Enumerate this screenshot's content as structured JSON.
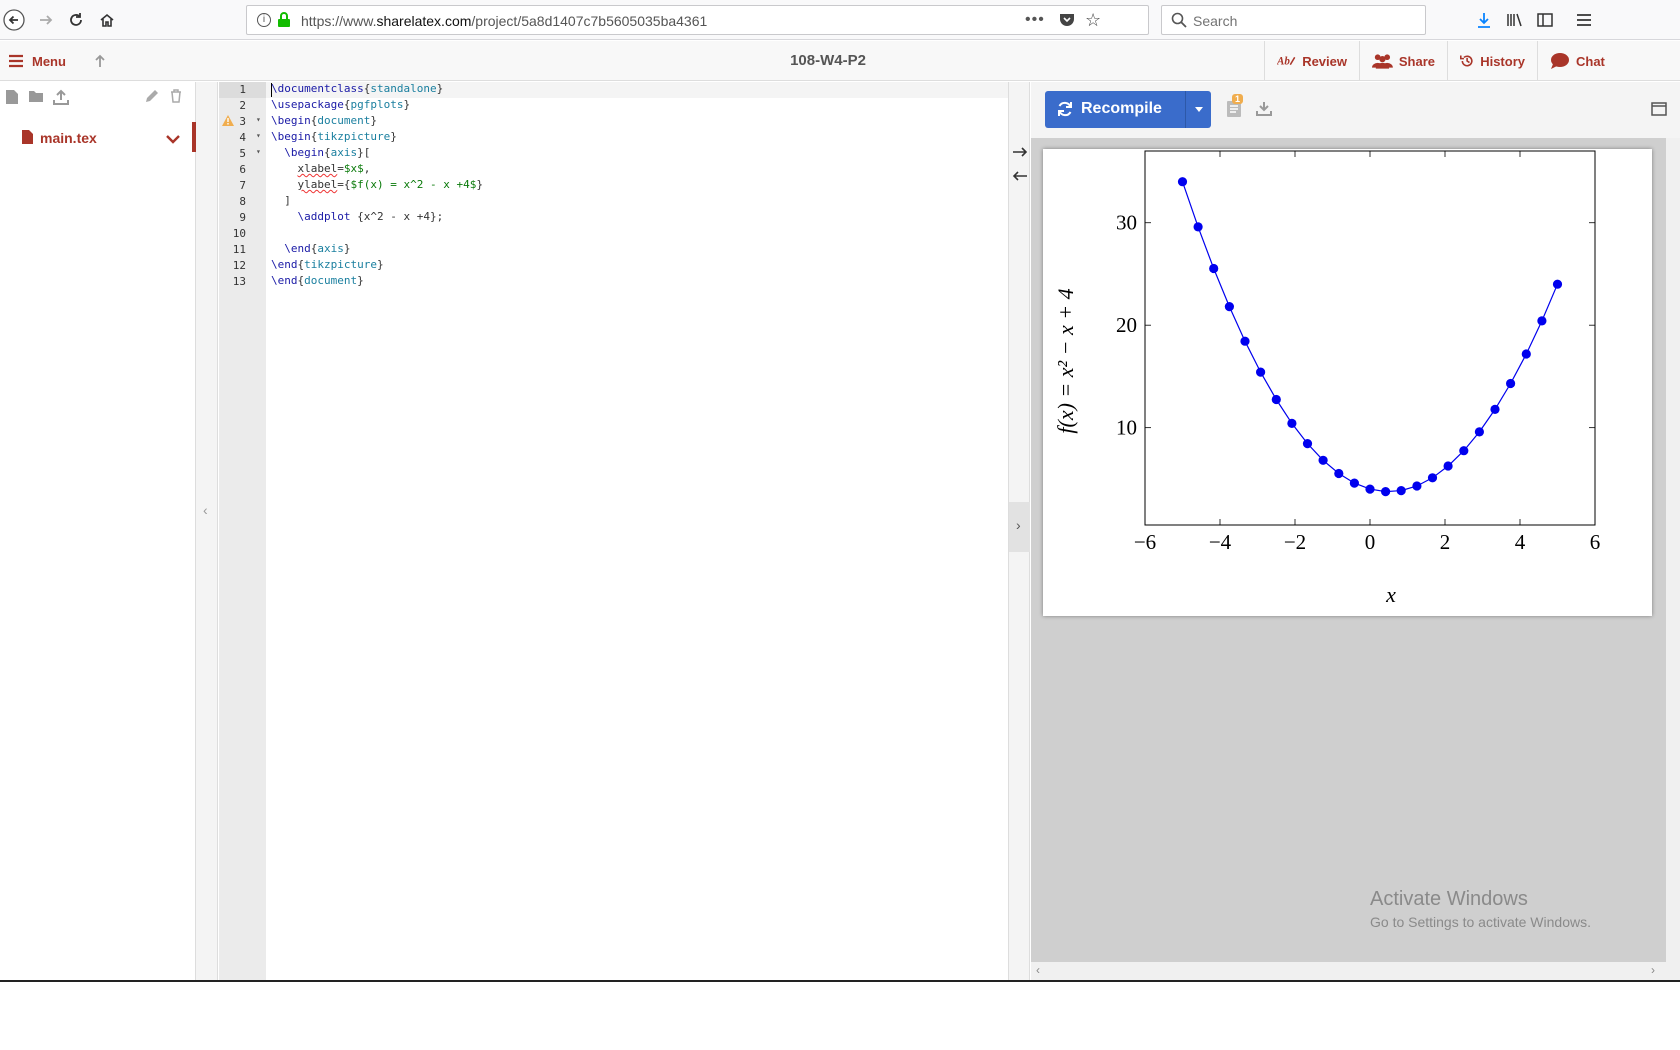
{
  "browser": {
    "url_prefix": "https://www.",
    "url_host": "sharelatex.com",
    "url_path": "/project/5a8d1407c7b5605035ba4361",
    "search_placeholder": "Search"
  },
  "toolbar": {
    "menu_label": "Menu",
    "project_title": "108-W4-P2",
    "review_label": "Review",
    "share_label": "Share",
    "history_label": "History",
    "chat_label": "Chat"
  },
  "filetree": {
    "files": [
      {
        "name": "main.tex"
      }
    ]
  },
  "editor": {
    "warning_line": 3,
    "lines": [
      {
        "n": "1",
        "fold": false
      },
      {
        "n": "2",
        "fold": false
      },
      {
        "n": "3",
        "fold": true
      },
      {
        "n": "4",
        "fold": true
      },
      {
        "n": "5",
        "fold": true
      },
      {
        "n": "6",
        "fold": false
      },
      {
        "n": "7",
        "fold": false
      },
      {
        "n": "8",
        "fold": false
      },
      {
        "n": "9",
        "fold": false
      },
      {
        "n": "10",
        "fold": false
      },
      {
        "n": "11",
        "fold": false
      },
      {
        "n": "12",
        "fold": false
      },
      {
        "n": "13",
        "fold": false
      }
    ],
    "code": [
      "\\documentclass{standalone}",
      "\\usepackage{pgfplots}",
      "\\begin{document}",
      "\\begin{tikzpicture}",
      "  \\begin{axis}[",
      "    xlabel=$x$,",
      "    ylabel={$f(x) = x^2 - x +4$}",
      "  ]",
      "    \\addplot {x^2 - x +4};",
      "",
      "  \\end{axis}",
      "\\end{tikzpicture}",
      "\\end{document}"
    ]
  },
  "pdf": {
    "recompile_label": "Recompile",
    "log_badge": "1",
    "watermark_line1": "Activate Windows",
    "watermark_line2": "Go to Settings to activate Windows."
  },
  "chart_data": {
    "type": "line",
    "xlabel": "x",
    "ylabel": "f(x) = x² − x + 4",
    "xlim": [
      -6,
      6
    ],
    "ylim": [
      0.5,
      37
    ],
    "xticks": [
      -6,
      -4,
      -2,
      0,
      2,
      4,
      6
    ],
    "yticks": [
      10,
      20,
      30
    ],
    "xtick_labels": [
      "−6",
      "−4",
      "−2",
      "0",
      "2",
      "4",
      "6"
    ],
    "ytick_labels": [
      "10",
      "20",
      "30"
    ],
    "color": "#0000ee",
    "series": [
      {
        "x": [
          -5,
          -4.5833,
          -4.1667,
          -3.75,
          -3.3333,
          -2.9167,
          -2.5,
          -2.0833,
          -1.6667,
          -1.25,
          -0.8333,
          -0.4167,
          0,
          0.4167,
          0.8333,
          1.25,
          1.6667,
          2.0833,
          2.5,
          2.9167,
          3.3333,
          3.75,
          4.1667,
          4.5833,
          5
        ],
        "y": [
          34,
          29.59,
          25.53,
          21.81,
          18.44,
          15.42,
          12.75,
          10.42,
          8.44,
          6.81,
          5.53,
          4.59,
          4,
          3.76,
          3.86,
          4.31,
          5.11,
          6.26,
          7.75,
          9.59,
          11.78,
          14.31,
          17.19,
          20.42,
          24
        ]
      }
    ]
  }
}
